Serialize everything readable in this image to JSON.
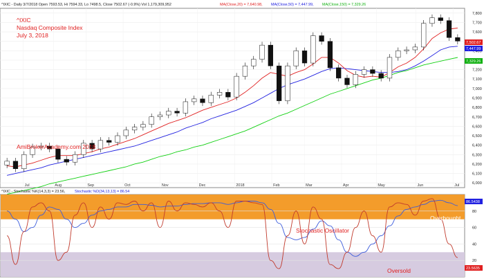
{
  "price_panel": {
    "header": {
      "main": "^IXIC - Daily 3/7/2018 Open 7593.53, Hi 7594.33, Lo 7498.5, Close 7502.67 (-0.9%) Vol 1,179,309,952",
      "ma20": "MA(Close,20) = 7,640.98,",
      "ma50": "MA(Close,50) = 7,447.99,",
      "ma150": "MA(Close,150) = 7,329.26"
    },
    "ticker": "^IXIC",
    "name": "Nasdaq Composite Index",
    "date": "July 3, 2018",
    "watermark": "AmiBrokerAcademy.com  2018",
    "value_boxes": [
      "7,502.67",
      "7,447.99",
      "7,329.26"
    ]
  },
  "stoch_panel": {
    "header": {
      "a": "^IXIC - Stochastic %K(14,3,3) = 23.56,",
      "b": "Stochastic %D(34,13,13) = 86.54"
    },
    "label": "Stochastic Oscillator",
    "overbought": "Overbought",
    "oversold": "Oversold",
    "value_boxes": [
      "86.5438",
      "23.5635"
    ]
  },
  "colors": {
    "ma20": "#e02020",
    "ma50": "#2020e0",
    "ma150": "#10d010",
    "k_line": "#c0392b",
    "d_line": "#3b5bdb",
    "overbought_band": "#f39c2b",
    "oversold_band": "#d6cbe0",
    "annotation": "#e02020"
  },
  "chart_data": [
    {
      "type": "candlestick",
      "x": [
        "Jun-26",
        "Jul-03",
        "Jul-10",
        "Jul-17",
        "Jul-24",
        "Jul-31",
        "Aug-07",
        "Aug-14",
        "Aug-21",
        "Aug-28",
        "Sep-04",
        "Sep-11",
        "Sep-18",
        "Sep-25",
        "Oct-02",
        "Oct-09",
        "Oct-16",
        "Oct-23",
        "Oct-30",
        "Nov-06",
        "Nov-13",
        "Nov-20",
        "Nov-27",
        "Dec-04",
        "Dec-11",
        "Dec-18",
        "Dec-25",
        "Jan-01",
        "Jan-08",
        "Jan-15",
        "Jan-22",
        "Jan-29",
        "Feb-05",
        "Feb-12",
        "Feb-19",
        "Feb-26",
        "Mar-05",
        "Mar-12",
        "Mar-19",
        "Mar-26",
        "Apr-02",
        "Apr-09",
        "Apr-16",
        "Apr-23",
        "Apr-30",
        "May-07",
        "May-14",
        "May-21",
        "May-28",
        "Jun-04",
        "Jun-11",
        "Jun-18",
        "Jun-25",
        "Jul-02"
      ],
      "close": [
        6230,
        6150,
        6300,
        6380,
        6390,
        6360,
        6250,
        6220,
        6300,
        6420,
        6360,
        6450,
        6430,
        6500,
        6560,
        6590,
        6620,
        6700,
        6720,
        6760,
        6740,
        6860,
        6890,
        6850,
        6930,
        6960,
        6910,
        7130,
        7240,
        7310,
        7460,
        7240,
        6870,
        7240,
        7400,
        7270,
        7560,
        7500,
        7220,
        7110,
        7040,
        7150,
        7200,
        7160,
        7110,
        7330,
        7400,
        7410,
        7440,
        7690,
        7750,
        7720,
        7540,
        7502.67
      ],
      "ma20": [
        6180,
        6170,
        6190,
        6210,
        6240,
        6270,
        6290,
        6290,
        6290,
        6310,
        6330,
        6360,
        6380,
        6410,
        6440,
        6470,
        6510,
        6550,
        6590,
        6630,
        6660,
        6690,
        6730,
        6770,
        6800,
        6830,
        6860,
        6900,
        6960,
        7030,
        7110,
        7170,
        7150,
        7130,
        7170,
        7200,
        7260,
        7330,
        7330,
        7270,
        7190,
        7140,
        7120,
        7130,
        7120,
        7170,
        7230,
        7270,
        7330,
        7420,
        7530,
        7590,
        7630,
        7640.98
      ],
      "ma50": [
        6080,
        6100,
        6120,
        6140,
        6160,
        6190,
        6210,
        6230,
        6250,
        6270,
        6290,
        6310,
        6330,
        6350,
        6370,
        6390,
        6420,
        6450,
        6480,
        6510,
        6540,
        6580,
        6610,
        6640,
        6680,
        6710,
        6740,
        6770,
        6810,
        6850,
        6900,
        6950,
        7000,
        7040,
        7070,
        7100,
        7140,
        7180,
        7210,
        7220,
        7210,
        7200,
        7190,
        7180,
        7170,
        7170,
        7180,
        7200,
        7240,
        7290,
        7350,
        7410,
        7440,
        7447.99
      ],
      "ma150": [
        5880,
        5900,
        5920,
        5940,
        5960,
        5990,
        6010,
        6030,
        6050,
        6070,
        6090,
        6110,
        6130,
        6150,
        6170,
        6200,
        6220,
        6250,
        6280,
        6300,
        6330,
        6350,
        6380,
        6400,
        6430,
        6460,
        6490,
        6520,
        6550,
        6590,
        6630,
        6670,
        6710,
        6740,
        6780,
        6820,
        6860,
        6900,
        6940,
        6970,
        7000,
        7030,
        7060,
        7090,
        7110,
        7140,
        7170,
        7190,
        7220,
        7250,
        7270,
        7290,
        7310,
        7329.26
      ],
      "yaxis_ticks": [
        6000,
        6100,
        6200,
        6300,
        6400,
        6500,
        6600,
        6700,
        6800,
        6900,
        7000,
        7100,
        7200,
        7300,
        7400,
        7500,
        7600,
        7700,
        7800
      ],
      "ylim": [
        5950,
        7850
      ],
      "month_labels": [
        "Jul",
        "Aug",
        "Sep",
        "Oct",
        "Nov",
        "Dec",
        "2018",
        "Feb",
        "Mar",
        "Apr",
        "May",
        "Jun",
        "Jul"
      ],
      "month_positions": [
        0.05,
        0.115,
        0.185,
        0.265,
        0.345,
        0.425,
        0.505,
        0.585,
        0.655,
        0.735,
        0.81,
        0.895,
        0.975
      ]
    },
    {
      "type": "line",
      "title": "^IXIC - Stochastic %K(14,3,3), %D(34,13,13)",
      "k": [
        50,
        15,
        55,
        85,
        90,
        80,
        20,
        30,
        75,
        90,
        60,
        85,
        70,
        90,
        88,
        92,
        80,
        90,
        60,
        92,
        80,
        90,
        88,
        85,
        90,
        80,
        60,
        92,
        92,
        90,
        88,
        20,
        10,
        50,
        80,
        40,
        85,
        70,
        15,
        10,
        30,
        60,
        80,
        50,
        30,
        85,
        90,
        88,
        75,
        92,
        95,
        70,
        40,
        23.56
      ],
      "d": [
        80,
        70,
        55,
        60,
        75,
        85,
        82,
        70,
        60,
        65,
        75,
        80,
        82,
        85,
        85,
        88,
        88,
        87,
        85,
        86,
        86,
        88,
        89,
        89,
        90,
        90,
        88,
        90,
        92,
        92,
        90,
        82,
        65,
        48,
        45,
        48,
        58,
        68,
        62,
        45,
        30,
        25,
        30,
        40,
        50,
        62,
        74,
        82,
        85,
        88,
        92,
        93,
        90,
        86.54
      ],
      "yaxis_ticks": [
        20,
        40,
        60,
        80
      ],
      "ylim": [
        0,
        100
      ],
      "bands": {
        "overbought": [
          70,
          100
        ],
        "oversold": [
          0,
          30
        ]
      }
    }
  ]
}
